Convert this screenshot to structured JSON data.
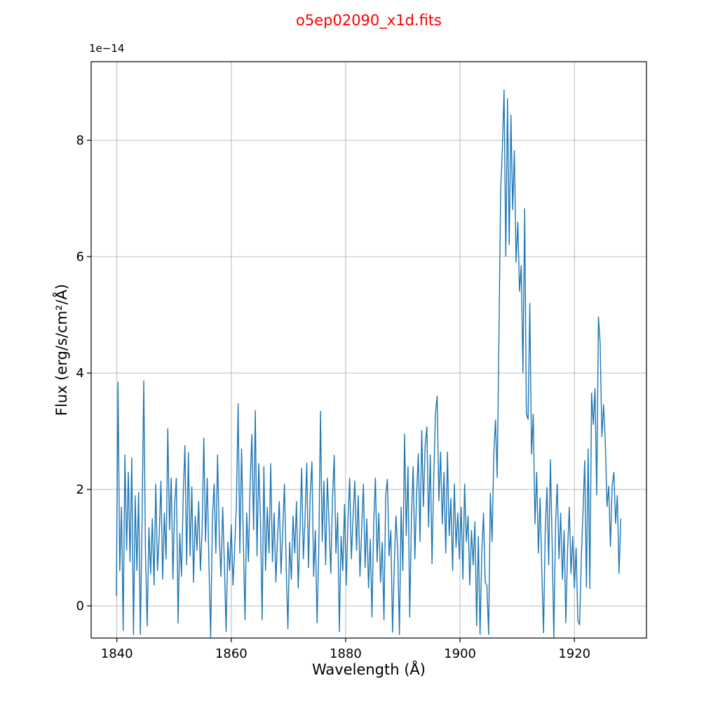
{
  "chart_data": {
    "type": "line",
    "title": "o5ep02090_x1d.fits",
    "title_color": "#ff0000",
    "xlabel": "Wavelength (Å)",
    "ylabel": "Flux (erg/s/cm²/Å)",
    "y_offset_text": "1e−14",
    "line_color": "#1f77b4",
    "grid": true,
    "grid_color": "#b0b0b0",
    "legend": "none",
    "xlim": [
      1835.5,
      1932.6
    ],
    "ylim": [
      -0.554,
      9.35
    ],
    "xticks": [
      1840,
      1860,
      1880,
      1900,
      1920
    ],
    "yticks": [
      0,
      2,
      4,
      6,
      8
    ],
    "x_start": 1839.9,
    "x_step": 0.3,
    "x_unit": "Angstrom",
    "flux_unit_scale": "1e-14 erg/s/cm2/Angstrom",
    "flux_1e14": [
      0.17,
      3.85,
      0.6,
      1.7,
      -0.43,
      2.6,
      0.95,
      2.3,
      0.75,
      2.55,
      -0.5,
      1.9,
      0.6,
      1.95,
      -0.5,
      1.45,
      3.87,
      0.9,
      -0.35,
      1.35,
      0.55,
      1.5,
      0.35,
      2.1,
      0.6,
      1.2,
      2.15,
      0.45,
      1.6,
      0.8,
      3.05,
      1.3,
      2.2,
      0.45,
      1.75,
      2.2,
      -0.3,
      1.25,
      0.5,
      1.9,
      2.76,
      0.7,
      2.64,
      0.85,
      2.05,
      0.4,
      1.55,
      0.95,
      1.8,
      0.6,
      1.3,
      2.89,
      1.1,
      2.2,
      0.7,
      -0.55,
      1.5,
      2.1,
      0.9,
      2.6,
      1.2,
      0.5,
      1.7,
      0.7,
      -0.45,
      1.1,
      0.6,
      1.4,
      0.35,
      1.0,
      1.75,
      3.48,
      0.9,
      2.7,
      1.2,
      -0.25,
      1.6,
      0.75,
      2.1,
      2.95,
      1.3,
      3.36,
      0.85,
      2.45,
      1.5,
      -0.25,
      2.4,
      0.6,
      1.7,
      0.9,
      2.45,
      0.75,
      1.6,
      0.4,
      1.2,
      1.8,
      0.55,
      1.3,
      2.1,
      0.7,
      -0.4,
      1.1,
      0.45,
      1.55,
      0.9,
      1.8,
      0.3,
      1.25,
      2.37,
      0.8,
      1.5,
      2.46,
      0.65,
      1.9,
      2.48,
      0.5,
      1.3,
      -0.3,
      0.95,
      3.35,
      1.1,
      2.15,
      0.7,
      2.2,
      1.4,
      0.55,
      1.85,
      2.59,
      0.9,
      1.6,
      -0.45,
      1.2,
      0.6,
      1.75,
      0.35,
      1.45,
      2.2,
      0.8,
      1.55,
      2.15,
      0.95,
      1.9,
      0.5,
      1.3,
      2.1,
      0.65,
      1.5,
      0.3,
      1.15,
      -0.2,
      1.4,
      2.2,
      0.75,
      1.6,
      0.4,
      1.1,
      -0.25,
      1.9,
      2.18,
      0.85,
      1.3,
      -0.46,
      0.7,
      1.55,
      0.95,
      -0.5,
      1.7,
      0.6,
      2.96,
      1.2,
      2.4,
      -0.2,
      1.5,
      2.4,
      0.8,
      1.9,
      2.62,
      1.1,
      3.02,
      1.7,
      2.75,
      3.08,
      1.35,
      2.6,
      0.72,
      2.2,
      3.3,
      3.61,
      1.8,
      2.65,
      1.4,
      2.3,
      0.9,
      2.65,
      1.2,
      1.85,
      0.6,
      2.1,
      1.0,
      1.6,
      0.8,
      1.7,
      0.45,
      2.1,
      1.1,
      1.55,
      0.35,
      1.3,
      0.7,
      1.45,
      -0.35,
      1.2,
      -0.5,
      0.9,
      1.6,
      0.4,
      0.35,
      -0.5,
      1.94,
      1.1,
      2.6,
      3.2,
      2.2,
      4.6,
      7.13,
      7.85,
      8.87,
      6.0,
      8.72,
      6.2,
      8.44,
      6.8,
      7.83,
      5.9,
      6.6,
      5.4,
      5.85,
      4.0,
      6.83,
      3.3,
      3.2,
      5.2,
      2.6,
      3.3,
      1.4,
      2.3,
      0.9,
      1.86,
      0.6,
      -0.47,
      1.3,
      2.04,
      0.7,
      2.52,
      1.1,
      -0.55,
      1.4,
      2.1,
      0.8,
      1.6,
      0.45,
      1.3,
      -0.3,
      0.95,
      1.7,
      0.55,
      1.2,
      0.3,
      1.0,
      -0.25,
      -0.33,
      0.8,
      1.6,
      2.5,
      0.31,
      2.7,
      0.29,
      3.66,
      3.11,
      3.74,
      1.9,
      4.97,
      4.51,
      2.9,
      3.46,
      2.82,
      1.7,
      2.06,
      1.01,
      2.06,
      2.3,
      1.41,
      1.9,
      0.55,
      1.5
    ]
  }
}
